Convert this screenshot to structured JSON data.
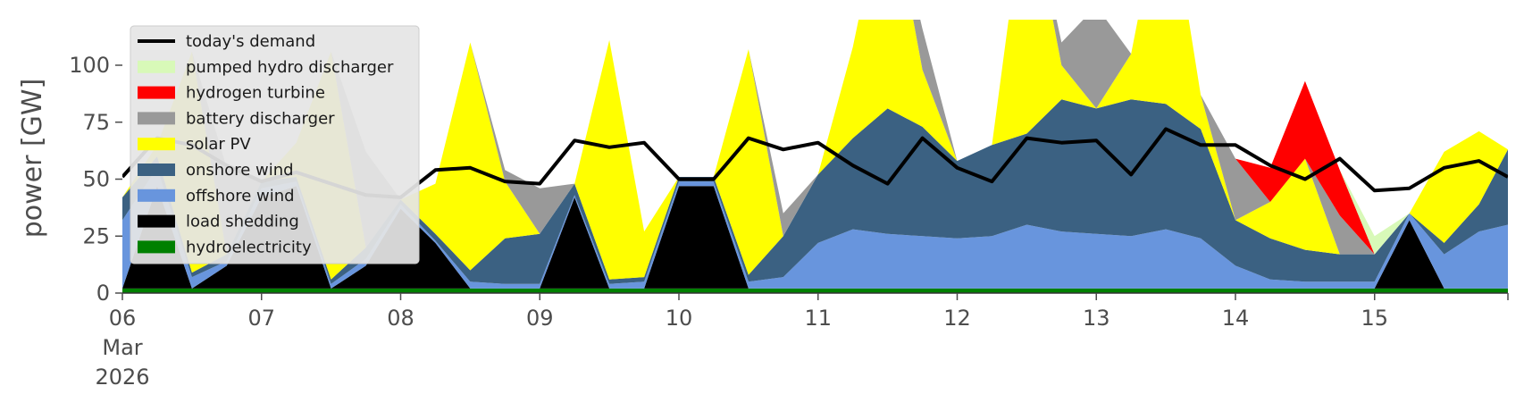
{
  "chart_data": {
    "type": "area",
    "ylabel": "power [GW]",
    "ylim": [
      0,
      120
    ],
    "y_ticks": [
      0,
      25,
      50,
      75,
      100
    ],
    "x_unit": "hours",
    "xlim": [
      0,
      239
    ],
    "x_ticks": [
      {
        "hour": 0,
        "lines": [
          "06",
          "Mar",
          "2026"
        ]
      },
      {
        "hour": 24,
        "lines": [
          "07"
        ]
      },
      {
        "hour": 48,
        "lines": [
          "08"
        ]
      },
      {
        "hour": 72,
        "lines": [
          "09"
        ]
      },
      {
        "hour": 96,
        "lines": [
          "10"
        ]
      },
      {
        "hour": 120,
        "lines": [
          "11"
        ]
      },
      {
        "hour": 144,
        "lines": [
          "12"
        ]
      },
      {
        "hour": 168,
        "lines": [
          "13"
        ]
      },
      {
        "hour": 192,
        "lines": [
          "14"
        ]
      },
      {
        "hour": 216,
        "lines": [
          "15"
        ]
      }
    ],
    "grid": false,
    "legend_position": "top-left",
    "legend_order": [
      "today's demand",
      "pumped hydro discharger",
      "hydrogen turbine",
      "battery discharger",
      "solar PV",
      "onshore wind",
      "offshore wind",
      "load shedding",
      "hydroelectricity"
    ],
    "colors": {
      "today's demand": "#000000",
      "pumped hydro discharger": "#d8f9b8",
      "hydrogen turbine": "#ff0000",
      "battery discharger": "#999999",
      "solar PV": "#ffff00",
      "onshore wind": "#3b6182",
      "offshore wind": "#6895dd",
      "load shedding": "#000000",
      "hydroelectricity": "#008000"
    },
    "series_sample_hours": [
      0,
      6,
      12,
      18,
      24,
      30,
      36,
      42,
      48,
      54,
      60,
      66,
      72,
      78,
      84,
      90,
      96,
      102,
      108,
      114,
      120,
      126,
      132,
      138,
      144,
      150,
      156,
      162,
      168,
      174,
      180,
      186,
      192,
      198,
      204,
      210,
      216,
      222,
      228,
      234,
      239
    ],
    "stack_order": [
      "hydroelectricity",
      "load shedding",
      "offshore wind",
      "onshore wind",
      "solar PV",
      "battery discharger",
      "hydrogen turbine",
      "pumped hydro discharger"
    ],
    "series": [
      {
        "name": "hydroelectricity",
        "values": [
          2,
          2,
          2,
          2,
          2,
          2,
          2,
          2,
          2,
          2,
          2,
          2,
          2,
          2,
          2,
          2,
          2,
          2,
          2,
          2,
          2,
          2,
          2,
          2,
          2,
          2,
          2,
          2,
          2,
          2,
          2,
          2,
          2,
          2,
          2,
          2,
          2,
          2,
          2,
          2,
          2
        ]
      },
      {
        "name": "load shedding",
        "values": [
          0,
          45,
          0,
          10,
          40,
          45,
          0,
          10,
          35,
          20,
          0,
          0,
          0,
          40,
          0,
          0,
          45,
          45,
          0,
          0,
          0,
          0,
          0,
          0,
          0,
          0,
          0,
          0,
          0,
          0,
          0,
          0,
          0,
          0,
          0,
          0,
          0,
          30,
          0,
          0,
          0
        ]
      },
      {
        "name": "offshore wind",
        "values": [
          30,
          8,
          5,
          2,
          4,
          2,
          2,
          3,
          2,
          1,
          3,
          2,
          2,
          1,
          2,
          3,
          2,
          2,
          3,
          5,
          20,
          26,
          24,
          23,
          22,
          23,
          28,
          25,
          24,
          23,
          26,
          22,
          10,
          4,
          3,
          3,
          3,
          3,
          15,
          25,
          28
        ]
      },
      {
        "name": "onshore wind",
        "values": [
          10,
          5,
          2,
          3,
          3,
          2,
          2,
          5,
          2,
          3,
          5,
          20,
          22,
          5,
          2,
          2,
          2,
          2,
          3,
          18,
          30,
          40,
          55,
          48,
          34,
          40,
          40,
          58,
          55,
          60,
          55,
          48,
          20,
          18,
          14,
          12,
          12,
          0,
          5,
          12,
          33
        ]
      },
      {
        "name": "solar PV",
        "values": [
          0,
          5,
          97,
          0,
          0,
          15,
          100,
          0,
          0,
          22,
          100,
          25,
          0,
          0,
          105,
          20,
          0,
          0,
          99,
          0,
          0,
          40,
          100,
          25,
          0,
          0,
          110,
          15,
          0,
          20,
          100,
          15,
          0,
          16,
          40,
          0,
          0,
          0,
          40,
          32,
          0
        ]
      },
      {
        "name": "battery discharger",
        "values": [
          0,
          0,
          0,
          38,
          0,
          0,
          0,
          42,
          0,
          0,
          0,
          5,
          20,
          0,
          0,
          0,
          0,
          0,
          0,
          10,
          0,
          0,
          0,
          18,
          0,
          0,
          0,
          10,
          45,
          0,
          0,
          0,
          27,
          0,
          0,
          17,
          0,
          0,
          0,
          0,
          0
        ]
      },
      {
        "name": "hydrogen turbine",
        "values": [
          0,
          0,
          0,
          0,
          0,
          0,
          0,
          0,
          0,
          0,
          0,
          0,
          0,
          0,
          0,
          0,
          0,
          0,
          0,
          0,
          0,
          0,
          0,
          0,
          0,
          0,
          0,
          0,
          0,
          0,
          0,
          0,
          0,
          15,
          34,
          20,
          0,
          0,
          0,
          0,
          0
        ]
      },
      {
        "name": "pumped hydro discharger",
        "values": [
          0,
          0,
          0,
          0,
          0,
          0,
          0,
          0,
          0,
          0,
          0,
          0,
          0,
          0,
          0,
          0,
          0,
          0,
          0,
          0,
          0,
          0,
          0,
          0,
          0,
          0,
          0,
          0,
          0,
          0,
          0,
          0,
          0,
          0,
          0,
          0,
          8,
          0,
          0,
          0,
          0
        ]
      },
      {
        "name": "today's demand",
        "values": [
          51,
          68,
          65,
          56,
          49,
          53,
          48,
          43,
          42,
          54,
          55,
          49,
          48,
          67,
          64,
          66,
          50,
          50,
          68,
          63,
          66,
          56,
          48,
          68,
          55,
          49,
          68,
          66,
          67,
          52,
          72,
          65,
          65,
          56,
          50,
          59,
          45,
          46,
          55,
          58,
          51
        ]
      }
    ]
  }
}
